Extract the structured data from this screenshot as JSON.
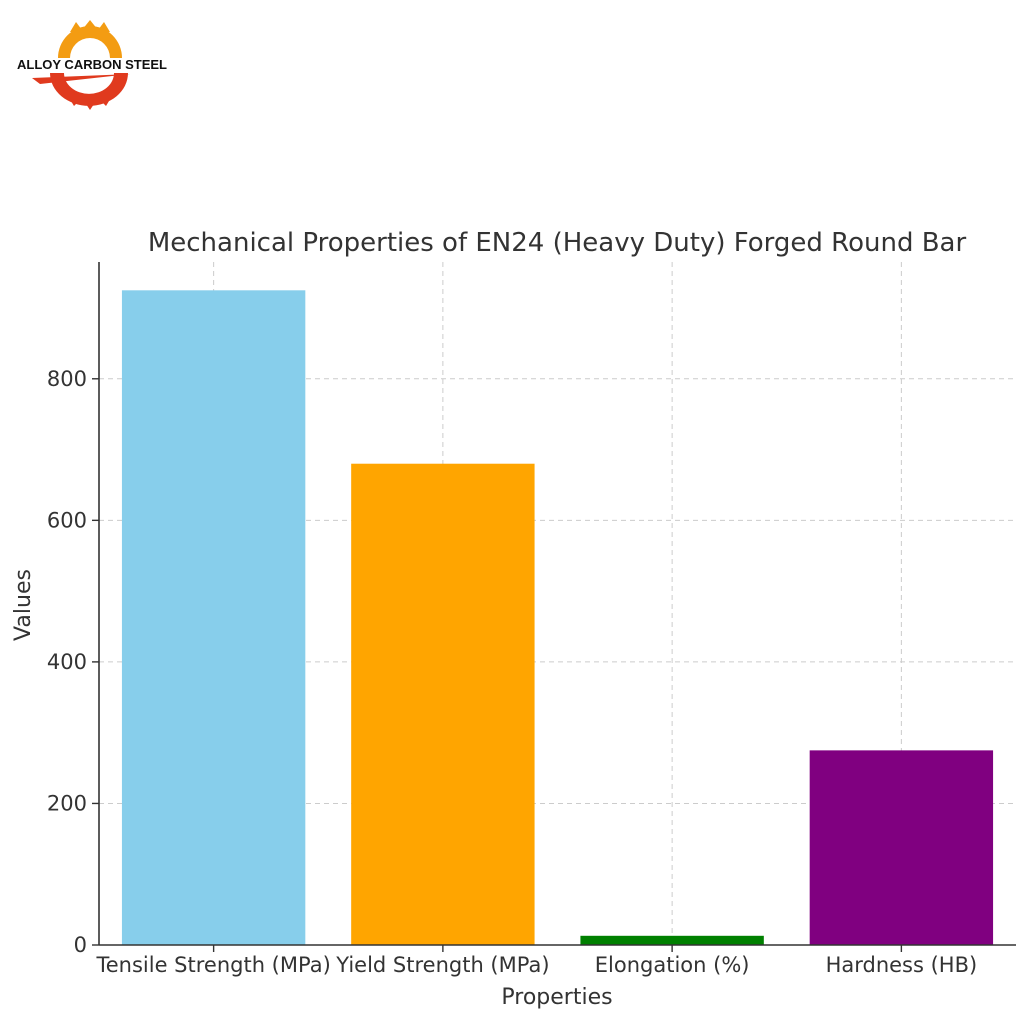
{
  "logo": {
    "text": "ALLOY CARBON STEEL",
    "colors": {
      "orange": "#f39c12",
      "red": "#e03a1e"
    }
  },
  "chart_data": {
    "type": "bar",
    "title": "Mechanical Properties of EN24 (Heavy Duty) Forged Round Bar",
    "xlabel": "Properties",
    "ylabel": "Values",
    "categories": [
      "Tensile Strength (MPa)",
      "Yield Strength (MPa)",
      "Elongation (%)",
      "Hardness (HB)"
    ],
    "values": [
      925,
      680,
      13,
      275
    ],
    "colors": [
      "#87ceeb",
      "#ffa500",
      "#008000",
      "#800080"
    ],
    "ylim": [
      0,
      965
    ],
    "yticks": [
      0,
      200,
      400,
      600,
      800
    ],
    "grid": true,
    "grid_style": "dashed"
  }
}
